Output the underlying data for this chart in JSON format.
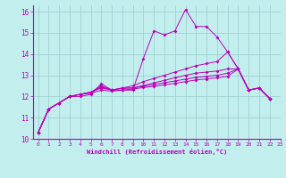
{
  "xlabel": "Windchill (Refroidissement éolien,°C)",
  "xlim": [
    -0.5,
    23
  ],
  "ylim": [
    10,
    16.3
  ],
  "xticks": [
    0,
    1,
    2,
    3,
    4,
    5,
    6,
    7,
    8,
    9,
    10,
    11,
    12,
    13,
    14,
    15,
    16,
    17,
    18,
    19,
    20,
    21,
    22,
    23
  ],
  "yticks": [
    10,
    11,
    12,
    13,
    14,
    15,
    16
  ],
  "bg_color": "#c2eeed",
  "line_color": "#bb00bb",
  "grid_color": "#99cccc",
  "lines": [
    [
      10.3,
      11.4,
      11.7,
      12.0,
      12.0,
      12.1,
      12.6,
      12.3,
      12.3,
      12.3,
      13.8,
      15.1,
      14.9,
      15.1,
      16.1,
      15.3,
      15.3,
      14.8,
      14.1,
      13.3,
      12.3,
      12.4,
      11.9
    ],
    [
      10.3,
      11.4,
      11.7,
      12.0,
      12.1,
      12.2,
      12.5,
      12.3,
      12.4,
      12.5,
      12.7,
      12.85,
      13.0,
      13.15,
      13.3,
      13.45,
      13.55,
      13.65,
      14.1,
      13.3,
      12.3,
      12.4,
      11.9
    ],
    [
      10.3,
      11.4,
      11.7,
      12.0,
      12.1,
      12.2,
      12.45,
      12.3,
      12.4,
      12.4,
      12.52,
      12.64,
      12.76,
      12.88,
      13.0,
      13.1,
      13.15,
      13.2,
      13.3,
      13.3,
      12.3,
      12.4,
      11.9
    ],
    [
      10.3,
      11.4,
      11.7,
      12.0,
      12.1,
      12.2,
      12.4,
      12.3,
      12.38,
      12.4,
      12.48,
      12.56,
      12.65,
      12.73,
      12.82,
      12.9,
      12.95,
      13.0,
      13.1,
      13.3,
      12.3,
      12.4,
      11.9
    ],
    [
      10.3,
      11.4,
      11.7,
      12.0,
      12.1,
      12.15,
      12.3,
      12.25,
      12.3,
      12.35,
      12.42,
      12.48,
      12.55,
      12.62,
      12.7,
      12.78,
      12.83,
      12.88,
      12.95,
      13.3,
      12.3,
      12.4,
      11.9
    ]
  ]
}
